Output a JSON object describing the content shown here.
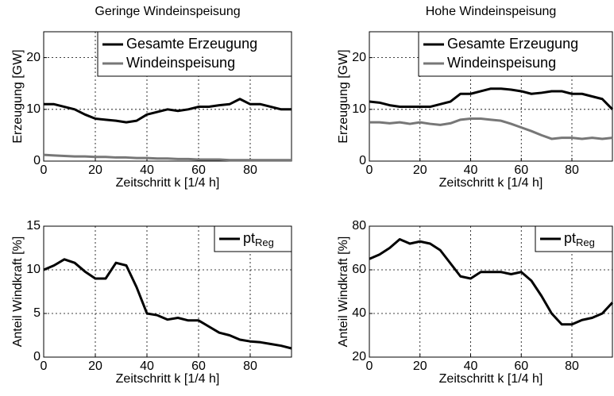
{
  "chart_data": [
    {
      "type": "line",
      "title": "Geringe Windeinspeisung",
      "xlabel": "Zeitschritt k [1/4 h]",
      "ylabel": "Erzeugung [GW]",
      "x": [
        0,
        4,
        8,
        12,
        16,
        20,
        24,
        28,
        32,
        36,
        40,
        44,
        48,
        52,
        56,
        60,
        64,
        68,
        72,
        76,
        80,
        84,
        88,
        92,
        96
      ],
      "xlim": [
        0,
        96
      ],
      "xticks": [
        0,
        20,
        40,
        60,
        80
      ],
      "ylim": [
        0,
        25
      ],
      "yticks": [
        0,
        10,
        20
      ],
      "grid": true,
      "legend": "upper right",
      "series": [
        {
          "name": "Gesamte Erzeugung",
          "color": "#000000",
          "values": [
            11,
            11,
            10.5,
            10,
            9,
            8.2,
            8,
            7.8,
            7.5,
            7.8,
            9,
            9.5,
            10,
            9.7,
            10,
            10.5,
            10.5,
            10.8,
            11,
            12,
            11,
            11,
            10.5,
            10,
            10
          ]
        },
        {
          "name": "Windeinspeisung",
          "color": "#777777",
          "values": [
            1.2,
            1.1,
            1,
            0.9,
            0.9,
            0.8,
            0.8,
            0.7,
            0.7,
            0.6,
            0.6,
            0.5,
            0.5,
            0.4,
            0.4,
            0.3,
            0.3,
            0.3,
            0.2,
            0.2,
            0.2,
            0.2,
            0.2,
            0.2,
            0.2
          ]
        }
      ]
    },
    {
      "type": "line",
      "title": "Hohe Windeinspeisung",
      "xlabel": "Zeitschritt k [1/4 h]",
      "ylabel": "Erzeugung [GW]",
      "x": [
        0,
        4,
        8,
        12,
        16,
        20,
        24,
        28,
        32,
        36,
        40,
        44,
        48,
        52,
        56,
        60,
        64,
        68,
        72,
        76,
        80,
        84,
        88,
        92,
        96
      ],
      "xlim": [
        0,
        96
      ],
      "xticks": [
        0,
        20,
        40,
        60,
        80
      ],
      "ylim": [
        0,
        25
      ],
      "yticks": [
        0,
        10,
        20
      ],
      "grid": true,
      "legend": "upper right",
      "series": [
        {
          "name": "Gesamte Erzeugung",
          "color": "#000000",
          "values": [
            11.5,
            11.3,
            10.8,
            10.5,
            10.5,
            10.5,
            10.5,
            11,
            11.5,
            13,
            13,
            13.5,
            14,
            14,
            13.8,
            13.5,
            13,
            13.2,
            13.5,
            13.5,
            13,
            13,
            12.5,
            12,
            10
          ]
        },
        {
          "name": "Windeinspeisung",
          "color": "#777777",
          "values": [
            7.5,
            7.5,
            7.3,
            7.5,
            7.2,
            7.5,
            7.2,
            7,
            7.3,
            8,
            8.2,
            8.2,
            8,
            7.8,
            7.2,
            6.5,
            5.8,
            5,
            4.3,
            4.5,
            4.5,
            4.3,
            4.5,
            4.3,
            4.5
          ]
        }
      ]
    },
    {
      "type": "line",
      "xlabel": "Zeitschritt k [1/4 h]",
      "ylabel": "Anteil Windkraft [%]",
      "x": [
        0,
        4,
        8,
        12,
        16,
        20,
        24,
        28,
        32,
        36,
        40,
        44,
        48,
        52,
        56,
        60,
        64,
        68,
        72,
        76,
        80,
        84,
        88,
        92,
        96
      ],
      "xlim": [
        0,
        96
      ],
      "xticks": [
        0,
        20,
        40,
        60,
        80
      ],
      "ylim": [
        0,
        15
      ],
      "yticks": [
        0,
        5,
        10,
        15
      ],
      "grid": true,
      "legend": "upper right",
      "series": [
        {
          "name": "pt",
          "subscript": "Reg",
          "color": "#000000",
          "values": [
            10,
            10.5,
            11.2,
            10.8,
            9.8,
            9,
            9,
            10.8,
            10.5,
            8,
            5,
            4.8,
            4.3,
            4.5,
            4.2,
            4.2,
            3.5,
            2.8,
            2.5,
            2,
            1.8,
            1.7,
            1.5,
            1.3,
            1
          ]
        }
      ]
    },
    {
      "type": "line",
      "xlabel": "Zeitschritt k [1/4 h]",
      "ylabel": "Anteil Windkraft [%]",
      "x": [
        0,
        4,
        8,
        12,
        16,
        20,
        24,
        28,
        32,
        36,
        40,
        44,
        48,
        52,
        56,
        60,
        64,
        68,
        72,
        76,
        80,
        84,
        88,
        92,
        96
      ],
      "xlim": [
        0,
        96
      ],
      "xticks": [
        0,
        20,
        40,
        60,
        80
      ],
      "ylim": [
        20,
        80
      ],
      "yticks": [
        20,
        40,
        60,
        80
      ],
      "grid": true,
      "legend": "upper right",
      "series": [
        {
          "name": "pt",
          "subscript": "Reg",
          "color": "#000000",
          "values": [
            65,
            67,
            70,
            74,
            72,
            73,
            72,
            69,
            63,
            57,
            56,
            59,
            59,
            59,
            58,
            59,
            55,
            48,
            40,
            35,
            35,
            37,
            38,
            40,
            45
          ]
        }
      ]
    }
  ]
}
